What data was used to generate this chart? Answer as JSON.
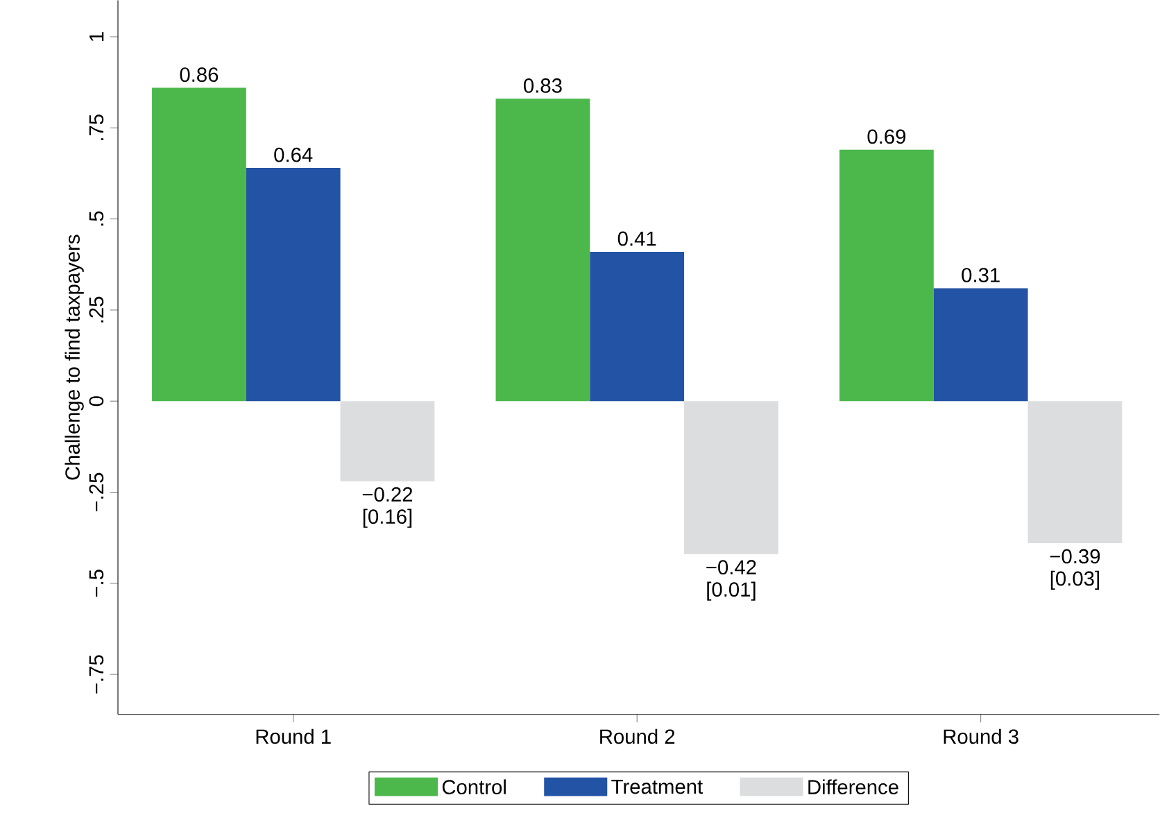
{
  "chart_data": {
    "type": "bar",
    "ylabel": "Challenge to find taxpayers",
    "categories": [
      "Round 1",
      "Round 2",
      "Round 3"
    ],
    "series": [
      {
        "name": "Control",
        "color": "#4cb84c",
        "values": [
          0.86,
          0.83,
          0.69
        ],
        "value_labels": [
          "0.86",
          "0.83",
          "0.69"
        ]
      },
      {
        "name": "Treatment",
        "color": "#2353a4",
        "values": [
          0.64,
          0.41,
          0.31
        ],
        "value_labels": [
          "0.64",
          "0.41",
          "0.31"
        ]
      },
      {
        "name": "Difference",
        "color": "#dcdddf",
        "values": [
          -0.22,
          -0.42,
          -0.39
        ],
        "value_labels": [
          "−0.22 [0.16]",
          "−0.42 [0.01]",
          "−0.39 [0.03]"
        ]
      }
    ],
    "ylim": [
      -0.86,
      1.1
    ],
    "yticks": [
      {
        "value": 1,
        "label": "1"
      },
      {
        "value": 0.75,
        "label": ".75"
      },
      {
        "value": 0.5,
        "label": ".5"
      },
      {
        "value": 0.25,
        "label": ".25"
      },
      {
        "value": 0,
        "label": "0"
      },
      {
        "value": -0.25,
        "label": "−.25"
      },
      {
        "value": -0.5,
        "label": "−.5"
      },
      {
        "value": -0.75,
        "label": "−.75"
      }
    ],
    "grid": false,
    "legend": "bottom"
  }
}
